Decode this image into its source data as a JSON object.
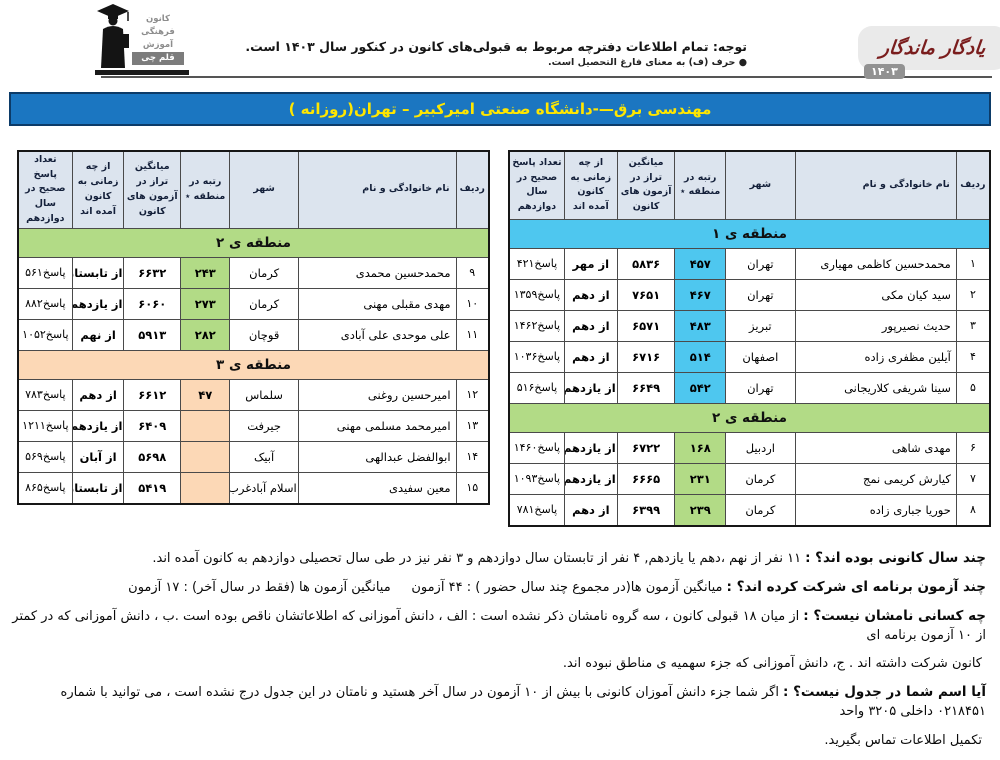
{
  "header_note": {
    "line1": "توجه: تمام اطلاعات دفترچه مربوط به قبولی‌های کانون در کنکور سال ۱۴۰۳ است.",
    "line2": "● حرف (ف) به معنای فارغ التحصیل است."
  },
  "logo": {
    "lines": [
      "کانون",
      "فرهنگی",
      "آموزش",
      "قلم چی"
    ]
  },
  "brand": {
    "name": "یادگار ماندگار",
    "year": "۱۴۰۳"
  },
  "title_bar": {
    "text": "مهندسی برق—-دانشگاه صنعتی امیرکبیر – تهران(روزانه )"
  },
  "colors": {
    "title_bg": "#1b76c1",
    "title_fg": "#ffe600",
    "header_bg": "#dce4ee",
    "region1": "#4ec7ef",
    "region2": "#b2db86",
    "region3": "#fcd8b6",
    "badge_bg": "#929292"
  },
  "columns": [
    "ردیف",
    "نام خانوادگی و نام",
    "شهر",
    "رتبه در منطقه ٭",
    "میانگین تراز در آزمون های کانون",
    "از چه زمانی به کانون آمده اند",
    "تعداد پاسخ صحیح در سال دوازدهم"
  ],
  "right_table": {
    "sections": [
      {
        "label": "منطقه ی ۱",
        "color_key": "region1",
        "rows": [
          {
            "num": "۱",
            "name": "محمدحسین کاظمی مهیاری",
            "city": "تهران",
            "rank": "۴۵۷",
            "score": "۵۸۳۶",
            "since": "از مهر",
            "answers": "۴۲۱پاسخ"
          },
          {
            "num": "۲",
            "name": "سید کیان مکی",
            "city": "تهران",
            "rank": "۴۶۷",
            "score": "۷۶۵۱",
            "since": "از دهم",
            "answers": "۱۳۵۹پاسخ"
          },
          {
            "num": "۳",
            "name": "حدیث نصیرپور",
            "city": "تبریز",
            "rank": "۴۸۳",
            "score": "۶۵۷۱",
            "since": "از دهم",
            "answers": "۱۴۶۲پاسخ"
          },
          {
            "num": "۴",
            "name": "آیلین مظفری زاده",
            "city": "اصفهان",
            "rank": "۵۱۴",
            "score": "۶۷۱۶",
            "since": "از دهم",
            "answers": "۱۰۳۶پاسخ"
          },
          {
            "num": "۵",
            "name": "سینا شریفی کلاریجانی",
            "city": "تهران",
            "rank": "۵۴۲",
            "score": "۶۶۴۹",
            "since": "از یازدهم",
            "answers": "۵۱۶پاسخ"
          }
        ]
      },
      {
        "label": "منطقه ی ۲",
        "color_key": "region2",
        "rows": [
          {
            "num": "۶",
            "name": "مهدی شاهی",
            "city": "اردبیل",
            "rank": "۱۶۸",
            "score": "۶۷۲۲",
            "since": "از یازدهم",
            "answers": "۱۴۶۰پاسخ"
          },
          {
            "num": "۷",
            "name": "کیارش کریمی نمج",
            "city": "کرمان",
            "rank": "۲۳۱",
            "score": "۶۶۶۵",
            "since": "از یازدهم",
            "answers": "۱۰۹۳پاسخ"
          },
          {
            "num": "۸",
            "name": "حوریا جباری زاده",
            "city": "کرمان",
            "rank": "۲۳۹",
            "score": "۶۳۹۹",
            "since": "از دهم",
            "answers": "۷۸۱پاسخ"
          }
        ]
      }
    ]
  },
  "left_table": {
    "sections": [
      {
        "label": "منطقه ی ۲",
        "color_key": "region2",
        "rows": [
          {
            "num": "۹",
            "name": "محمدحسین محمدی",
            "city": "کرمان",
            "rank": "۲۴۳",
            "score": "۶۶۳۲",
            "since": "از تابستان",
            "answers": "۵۶۱پاسخ"
          },
          {
            "num": "۱۰",
            "name": "مهدی مقبلی مهنی",
            "city": "کرمان",
            "rank": "۲۷۳",
            "score": "۶۰۶۰",
            "since": "از یازدهم",
            "answers": "۸۸۲پاسخ"
          },
          {
            "num": "۱۱",
            "name": "علی موحدی علی آبادی",
            "city": "قوچان",
            "rank": "۲۸۲",
            "score": "۵۹۱۳",
            "since": "از نهم",
            "answers": "۱۰۵۲پاسخ"
          }
        ]
      },
      {
        "label": "منطقه ی ۳",
        "color_key": "region3",
        "rows": [
          {
            "num": "۱۲",
            "name": "امیرحسین روغنی",
            "city": "سلماس",
            "rank": "۴۷",
            "score": "۶۶۱۲",
            "since": "از دهم",
            "answers": "۷۸۳پاسخ"
          },
          {
            "num": "۱۳",
            "name": "امیرمحمد مسلمی مهنی",
            "city": "جیرفت",
            "rank": "",
            "score": "۶۴۰۹",
            "since": "از یازدهم",
            "answers": "۱۲۱۱پاسخ"
          },
          {
            "num": "۱۴",
            "name": "ابوالفضل عبدالهی",
            "city": "آبیک",
            "rank": "",
            "score": "۵۶۹۸",
            "since": "از آبان",
            "answers": "۵۶۹پاسخ"
          },
          {
            "num": "۱۵",
            "name": "معین سفیدی",
            "city": "اسلام آبادغرب",
            "rank": "",
            "score": "۵۴۱۹",
            "since": "از تابستان",
            "answers": "۸۶۵پاسخ"
          }
        ]
      }
    ]
  },
  "footer": [
    {
      "head": "چند سال کانونی بوده اند؟ :",
      "body": "۱۱ نفر از نهم ،دهم یا یازدهم, ۴ نفر از تابستان سال دوازدهم و ۳ نفر نیز در طی سال تحصیلی دوازدهم به کانون آمده اند."
    },
    {
      "head": "چند آزمون برنامه ای شرکت کرده اند؟ :",
      "body": "میانگین آزمون ها(در مجموع چند سال حضور ) : ۴۴ آزمون     میانگین آزمون ها (فقط در سال آخر) : ۱۷ آزمون"
    },
    {
      "head": "چه کسانی نامشان نیست؟ :",
      "body": "از میان ۱۸ قبولی کانون ، سه گروه نامشان ذکر نشده است : الف ، دانش آموزانی که اطلاعاتشان ناقص بوده است .ب ، دانش آموزانی که در کمتر از ۱۰ آزمون برنامه ای"
    },
    {
      "head": "",
      "body": "کانون شرکت داشته اند . ج، دانش آموزانی که جزء سهمیه ی مناطق نبوده اند."
    },
    {
      "head": "آیا اسم شما در جدول نیست؟ :",
      "body": "اگر شما جزء دانش آموزان کانونی با بیش از ۱۰ آزمون در سال آخر هستید و نامتان در این جدول درج نشده است ، می توانید با شماره ۰۲۱۸۴۵۱ داخلی ۳۲۰۵ واحد"
    },
    {
      "head": "",
      "body": "تکمیل اطلاعات تماس بگیرید."
    }
  ]
}
